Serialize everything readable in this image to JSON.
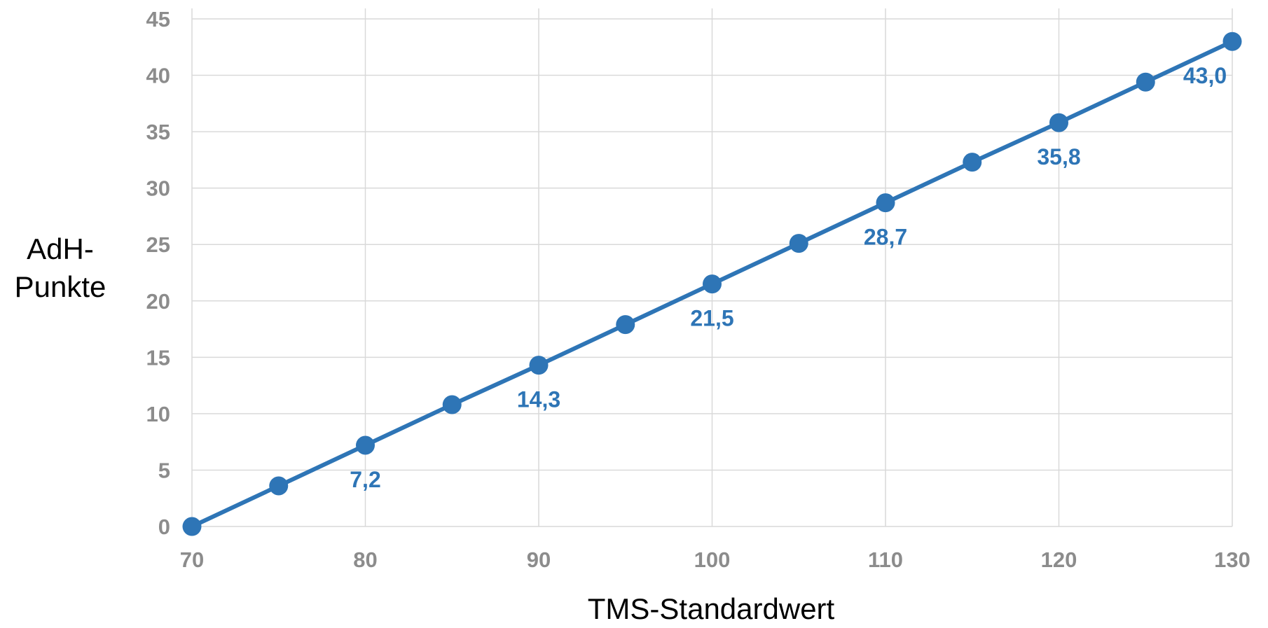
{
  "chart_data": {
    "type": "line",
    "title": "",
    "xlabel": "TMS-Standardwert",
    "ylabel_lines": [
      "AdH-",
      "Punkte"
    ],
    "xlim": [
      70,
      130
    ],
    "ylim": [
      0,
      45
    ],
    "x_ticks": [
      70,
      80,
      90,
      100,
      110,
      120,
      130
    ],
    "y_ticks": [
      0,
      5,
      10,
      15,
      20,
      25,
      30,
      35,
      40,
      45
    ],
    "grid": true,
    "legend": "none",
    "series_color": "#2e75b6",
    "grid_color": "#d9d9d9",
    "tick_color": "#8c8c8c",
    "series": [
      {
        "x": [
          70,
          75,
          80,
          85,
          90,
          95,
          100,
          105,
          110,
          115,
          120,
          125,
          130
        ],
        "values": [
          0,
          3.6,
          7.2,
          10.8,
          14.3,
          17.9,
          21.5,
          25.1,
          28.7,
          32.3,
          35.8,
          39.4,
          43.0
        ]
      }
    ],
    "data_labels": [
      {
        "x": 80,
        "y": 7.2,
        "text": "7,2"
      },
      {
        "x": 90,
        "y": 14.3,
        "text": "14,3"
      },
      {
        "x": 100,
        "y": 21.5,
        "text": "21,5"
      },
      {
        "x": 110,
        "y": 28.7,
        "text": "28,7"
      },
      {
        "x": 120,
        "y": 35.8,
        "text": "35,8"
      },
      {
        "x": 130,
        "y": 43.0,
        "text": "43,0"
      }
    ]
  }
}
